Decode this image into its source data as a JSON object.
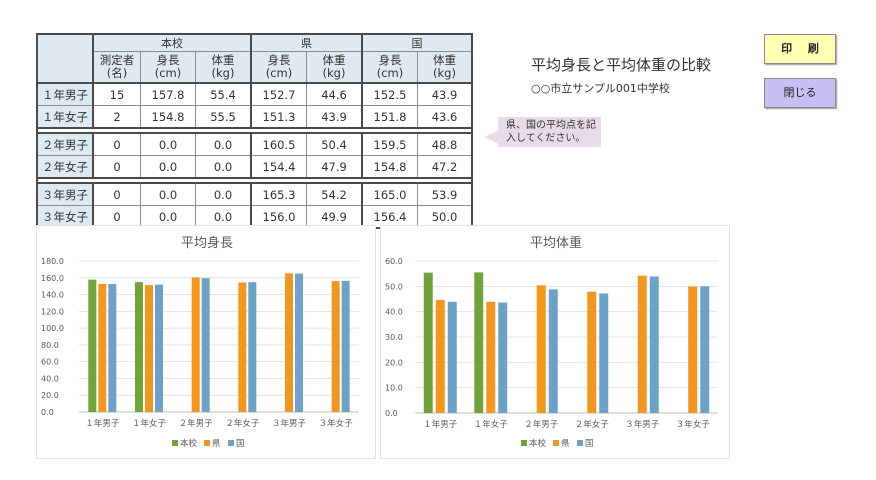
{
  "table": {
    "groups": [
      "本校",
      "県",
      "国"
    ],
    "sub_headers": [
      {
        "line1": "測定者",
        "line2": "(名)"
      },
      {
        "line1": "身長",
        "line2": "(cm)"
      },
      {
        "line1": "体重",
        "line2": "(kg)"
      },
      {
        "line1": "身長",
        "line2": "(cm)"
      },
      {
        "line1": "体重",
        "line2": "(kg)"
      },
      {
        "line1": "身長",
        "line2": "(cm)"
      },
      {
        "line1": "体重",
        "line2": "(kg)"
      }
    ],
    "rows": [
      {
        "label": "１年男子",
        "cells": [
          "15",
          "157.8",
          "55.4",
          "152.7",
          "44.6",
          "152.5",
          "43.9"
        ]
      },
      {
        "label": "１年女子",
        "cells": [
          "2",
          "154.8",
          "55.5",
          "151.3",
          "43.9",
          "151.8",
          "43.6"
        ]
      },
      {
        "label": "２年男子",
        "cells": [
          "0",
          "0.0",
          "0.0",
          "160.5",
          "50.4",
          "159.5",
          "48.8"
        ]
      },
      {
        "label": "２年女子",
        "cells": [
          "0",
          "0.0",
          "0.0",
          "154.4",
          "47.9",
          "154.8",
          "47.2"
        ]
      },
      {
        "label": "３年男子",
        "cells": [
          "0",
          "0.0",
          "0.0",
          "165.3",
          "54.2",
          "165.0",
          "53.9"
        ]
      },
      {
        "label": "３年女子",
        "cells": [
          "0",
          "0.0",
          "0.0",
          "156.0",
          "49.9",
          "156.4",
          "50.0"
        ]
      }
    ]
  },
  "header": {
    "title": "平均身長と平均体重の比較",
    "subtitle": "○○市立サンプル001中学校"
  },
  "callout": {
    "line1": "県、国の平均点を記",
    "line2": "入してください。"
  },
  "buttons": {
    "print_label": "印 刷",
    "close_label": "閉じる"
  },
  "colors": {
    "school": "#70a33a",
    "prefecture": "#f2961e",
    "nation": "#6ca2c8",
    "header_fill": "#dfe9f2",
    "print_button": "#ffffb3",
    "close_button": "#c6c0f5",
    "callout": "#e6dbe6"
  },
  "chart_data": [
    {
      "type": "bar",
      "title": "平均身長",
      "categories": [
        "１年男子",
        "１年女子",
        "２年男子",
        "２年女子",
        "３年男子",
        "３年女子"
      ],
      "series": [
        {
          "name": "本校",
          "values": [
            157.8,
            154.8,
            0.0,
            0.0,
            0.0,
            0.0
          ]
        },
        {
          "name": "県",
          "values": [
            152.7,
            151.3,
            160.5,
            154.4,
            165.3,
            156.0
          ]
        },
        {
          "name": "国",
          "values": [
            152.5,
            151.8,
            159.5,
            154.8,
            165.0,
            156.4
          ]
        }
      ],
      "ylim": [
        0,
        180
      ],
      "yticks": [
        "0.0",
        "20.0",
        "40.0",
        "60.0",
        "80.0",
        "100.0",
        "120.0",
        "140.0",
        "160.0",
        "180.0"
      ],
      "grid": true,
      "legend": "bottom"
    },
    {
      "type": "bar",
      "title": "平均体重",
      "categories": [
        "１年男子",
        "１年女子",
        "２年男子",
        "２年女子",
        "３年男子",
        "３年女子"
      ],
      "series": [
        {
          "name": "本校",
          "values": [
            55.4,
            55.5,
            0.0,
            0.0,
            0.0,
            0.0
          ]
        },
        {
          "name": "県",
          "values": [
            44.6,
            43.9,
            50.4,
            47.9,
            54.2,
            49.9
          ]
        },
        {
          "name": "国",
          "values": [
            43.9,
            43.6,
            48.8,
            47.2,
            53.9,
            50.0
          ]
        }
      ],
      "ylim": [
        0,
        60
      ],
      "yticks": [
        "0.0",
        "10.0",
        "20.0",
        "30.0",
        "40.0",
        "50.0",
        "60.0"
      ],
      "grid": true,
      "legend": "bottom"
    }
  ]
}
